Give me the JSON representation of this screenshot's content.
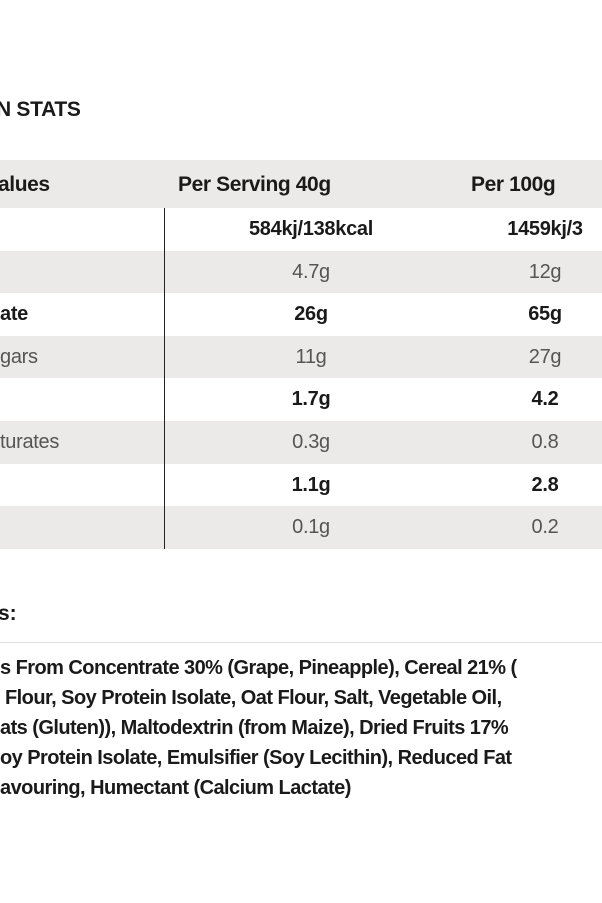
{
  "title": "N STATS",
  "table": {
    "headers": [
      "alues",
      "Per Serving 40g",
      "Per 100g"
    ],
    "rows": [
      {
        "label": "",
        "serving": "584kj/138kcal",
        "per100": "1459kj/3",
        "bold": true
      },
      {
        "label": "",
        "serving": "4.7g",
        "per100": "12g",
        "bold": false
      },
      {
        "label": "ate",
        "serving": "26g",
        "per100": "65g",
        "bold": true
      },
      {
        "label": "gars",
        "serving": "11g",
        "per100": "27g",
        "bold": false
      },
      {
        "label": "",
        "serving": "1.7g",
        "per100": "4.2",
        "bold": true
      },
      {
        "label": "turates",
        "serving": "0.3g",
        "per100": "0.8",
        "bold": false
      },
      {
        "label": "",
        "serving": "1.1g",
        "per100": "2.8",
        "bold": true
      },
      {
        "label": "",
        "serving": "0.1g",
        "per100": "0.2",
        "bold": false
      }
    ]
  },
  "ingredients": {
    "heading": "s:",
    "lines": [
      "s From Concentrate 30% (Grape, Pineapple), Cereal 21% (",
      " Flour, Soy Protein Isolate, Oat Flour, Salt, Vegetable Oil,",
      "ats (Gluten)), Maltodextrin (from Maize), Dried Fruits 17%",
      "oy Protein Isolate, Emulsifier (Soy Lecithin), Reduced Fat",
      "avouring, Humectant (Calcium Lactate)"
    ]
  }
}
